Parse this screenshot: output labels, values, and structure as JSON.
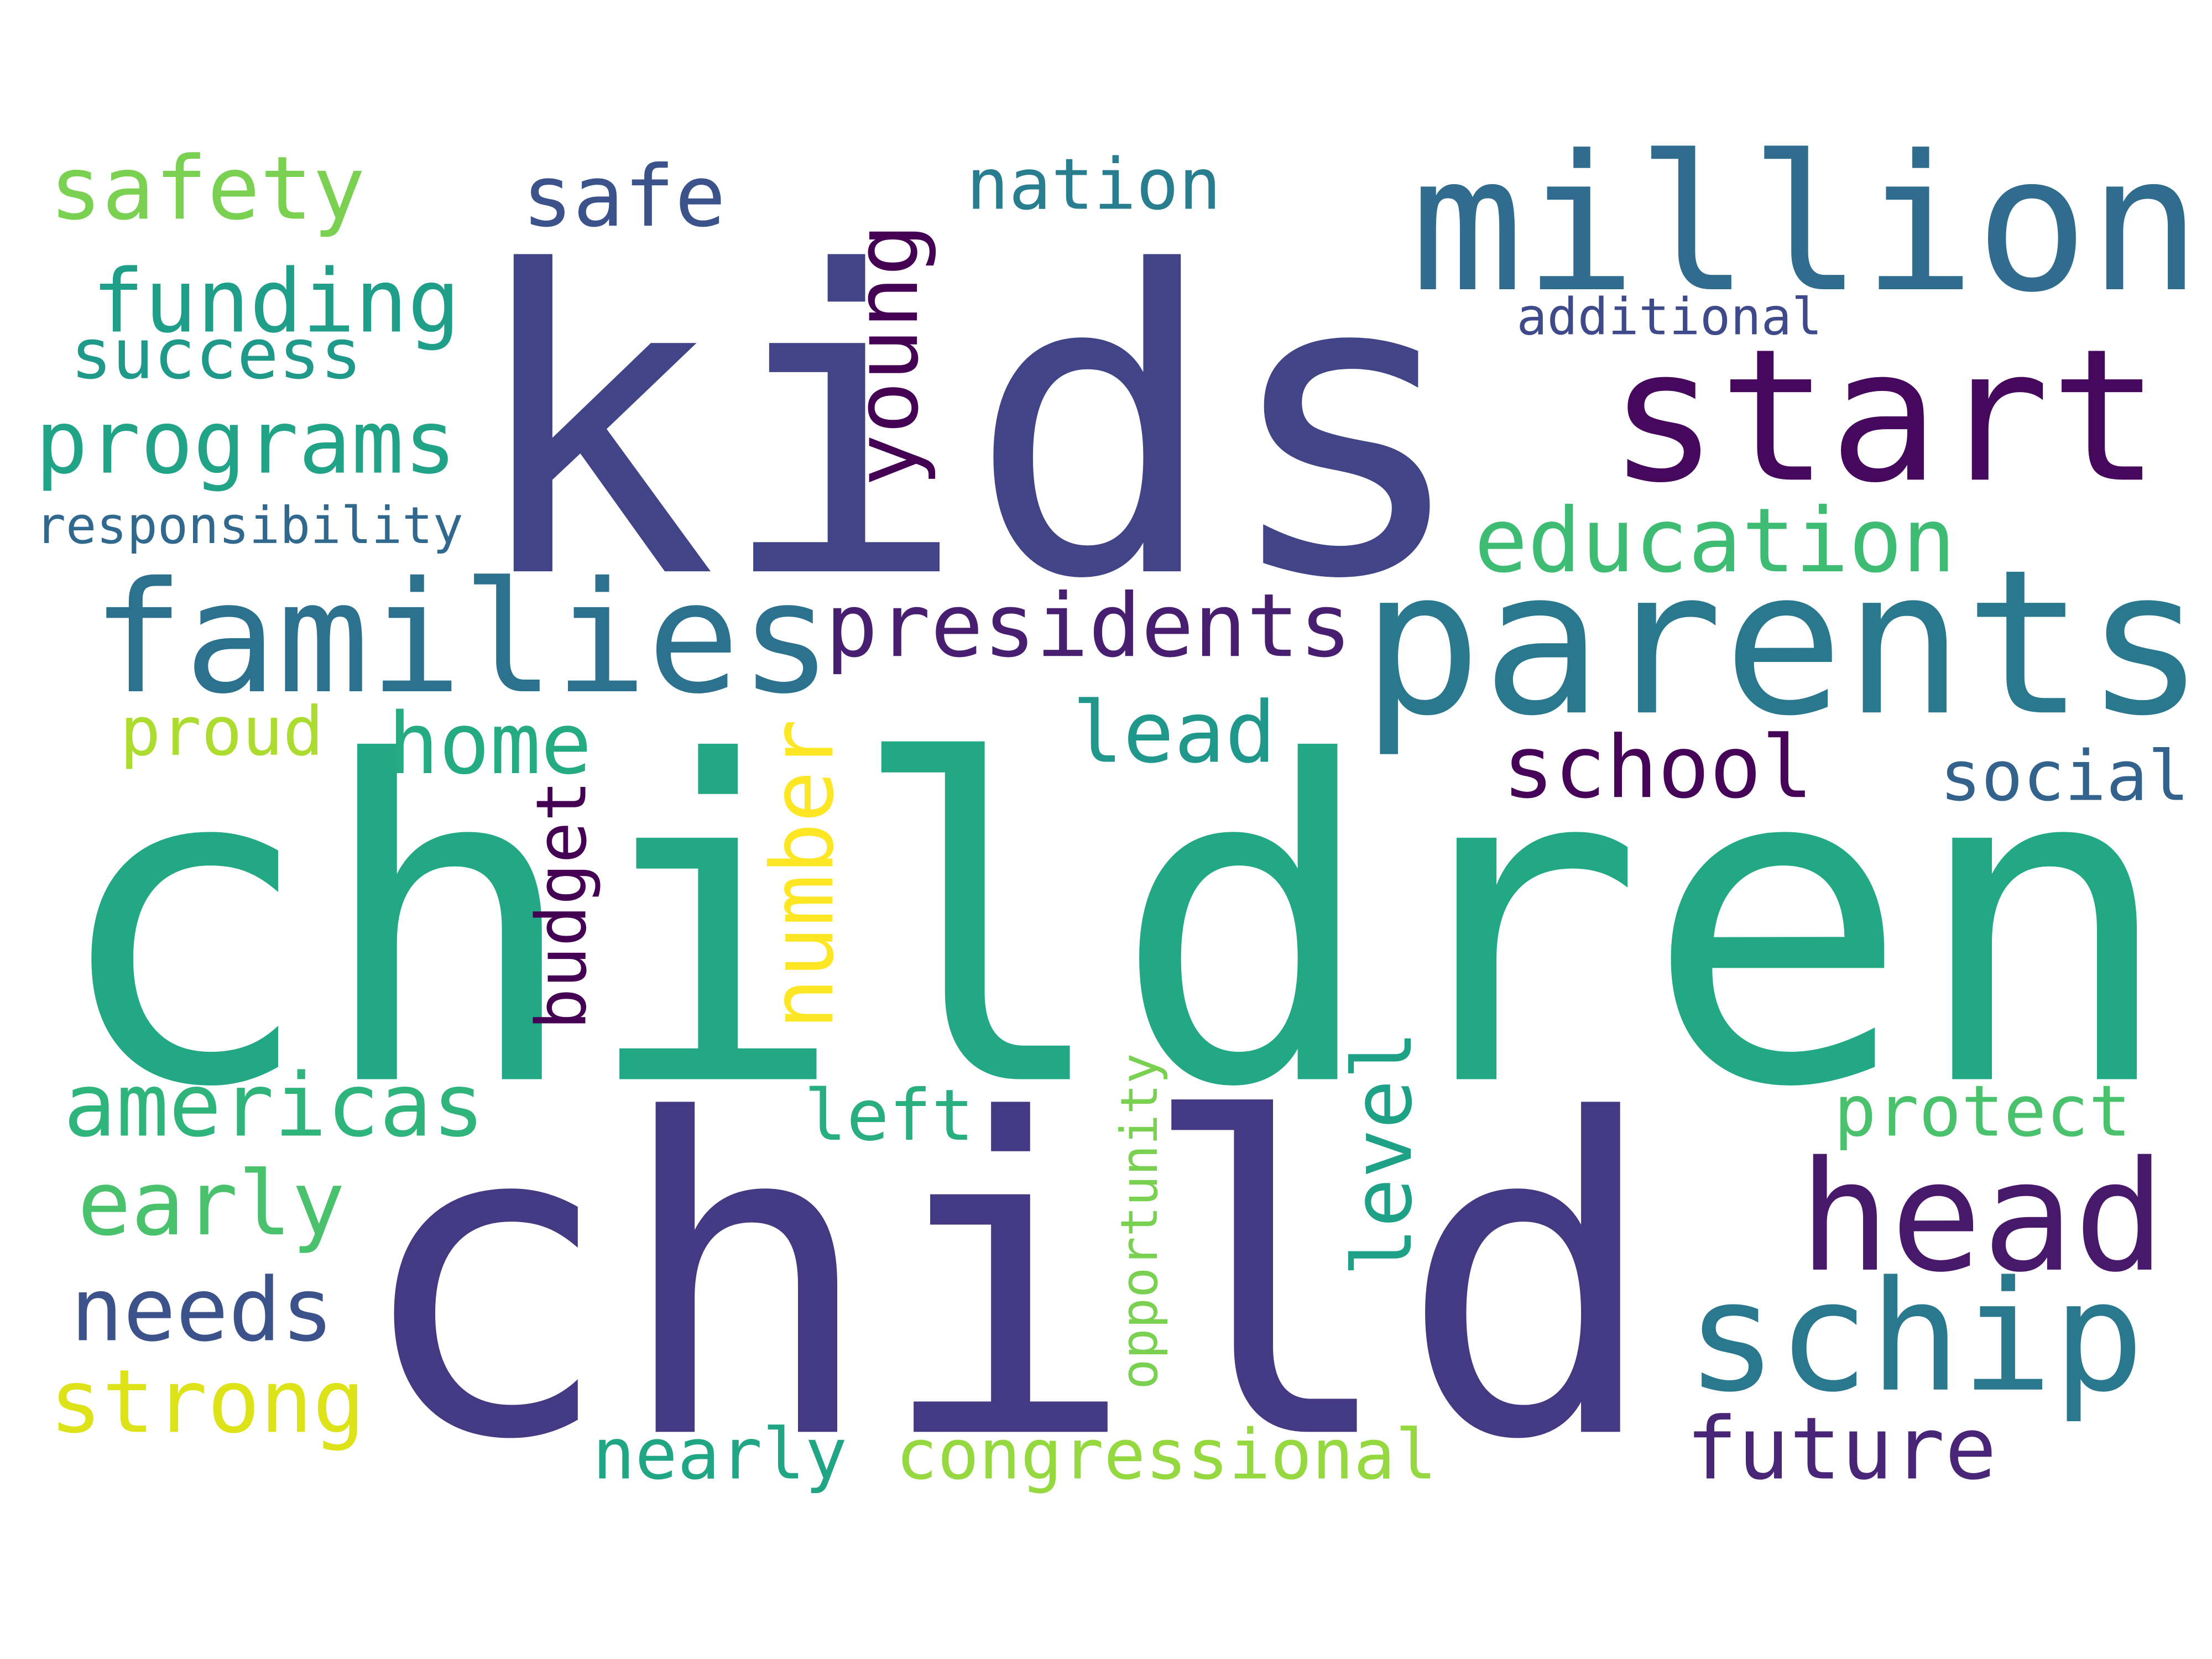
{
  "words": [
    "kids",
    "children",
    "child",
    "million",
    "start",
    "parents",
    "families",
    "presidents",
    "safety",
    "safe",
    "nation",
    "additional",
    "funding",
    "success",
    "programs",
    "responsibility",
    "young",
    "education",
    "lead",
    "home",
    "proud",
    "school",
    "social",
    "number",
    "budget",
    "level",
    "opportunity",
    "americas",
    "left",
    "protect",
    "head",
    "early",
    "needs",
    "schip",
    "strong",
    "nearly",
    "congressional",
    "future"
  ]
}
